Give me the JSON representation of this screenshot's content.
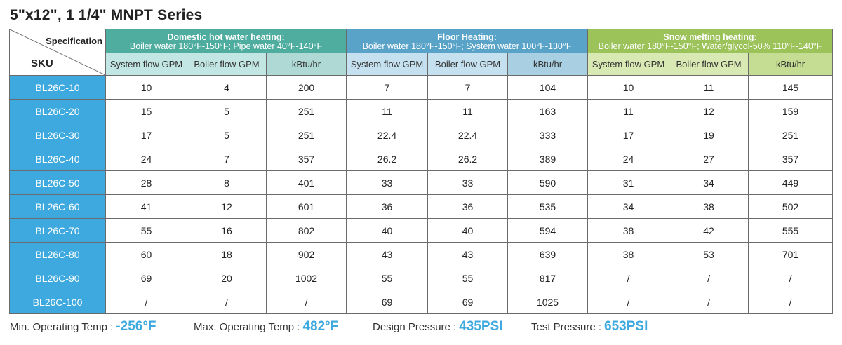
{
  "title": "5\"x12\", 1 1/4\" MNPT Series",
  "corner": {
    "spec_label": "Specification",
    "sku_label": "SKU"
  },
  "groups": [
    {
      "title": "Domestic hot water heating:",
      "subtitle": "Boiler water 180°F-150°F; Pipe water 40°F-140°F",
      "color": "#4fada0"
    },
    {
      "title": "Floor Heating:",
      "subtitle": "Boiler water 180°F-150°F; System water 100°F-130°F",
      "color": "#5aa3c8"
    },
    {
      "title": "Snow melting heating:",
      "subtitle": "Boiler water 180°F-150°F; Water/glycol-50% 110°F-140°F",
      "color": "#9cc25a"
    }
  ],
  "columns": [
    "System flow GPM",
    "Boiler flow GPM",
    "kBtu/hr",
    "System flow GPM",
    "Boiler flow GPM",
    "kBtu/hr",
    "System flow GPM",
    "Boiler flow GPM",
    "kBtu/hr"
  ],
  "rows": [
    {
      "sku": "BL26C-10",
      "values": [
        "10",
        "4",
        "200",
        "7",
        "7",
        "104",
        "10",
        "11",
        "145"
      ]
    },
    {
      "sku": "BL26C-20",
      "values": [
        "15",
        "5",
        "251",
        "11",
        "11",
        "163",
        "11",
        "12",
        "159"
      ]
    },
    {
      "sku": "BL26C-30",
      "values": [
        "17",
        "5",
        "251",
        "22.4",
        "22.4",
        "333",
        "17",
        "19",
        "251"
      ]
    },
    {
      "sku": "BL26C-40",
      "values": [
        "24",
        "7",
        "357",
        "26.2",
        "26.2",
        "389",
        "24",
        "27",
        "357"
      ]
    },
    {
      "sku": "BL26C-50",
      "values": [
        "28",
        "8",
        "401",
        "33",
        "33",
        "590",
        "31",
        "34",
        "449"
      ]
    },
    {
      "sku": "BL26C-60",
      "values": [
        "41",
        "12",
        "601",
        "36",
        "36",
        "535",
        "34",
        "38",
        "502"
      ]
    },
    {
      "sku": "BL26C-70",
      "values": [
        "55",
        "16",
        "802",
        "40",
        "40",
        "594",
        "38",
        "42",
        "555"
      ]
    },
    {
      "sku": "BL26C-80",
      "values": [
        "60",
        "18",
        "902",
        "43",
        "43",
        "639",
        "38",
        "53",
        "701"
      ]
    },
    {
      "sku": "BL26C-90",
      "values": [
        "69",
        "20",
        "1002",
        "55",
        "55",
        "817",
        "/",
        "/",
        "/"
      ]
    },
    {
      "sku": "BL26C-100",
      "values": [
        "/",
        "/",
        "/",
        "69",
        "69",
        "1025",
        "/",
        "/",
        "/"
      ]
    }
  ],
  "footer": [
    {
      "label": "Min. Operating Temp :",
      "value": "-256°F"
    },
    {
      "label": "Max. Operating Temp :",
      "value": "482°F"
    },
    {
      "label": "Design Pressure :",
      "value": "435PSI"
    },
    {
      "label": "Test Pressure :",
      "value": "653PSI"
    }
  ],
  "colors": {
    "sku_bg": "#3ea9de",
    "value_accent": "#3ea9de"
  }
}
